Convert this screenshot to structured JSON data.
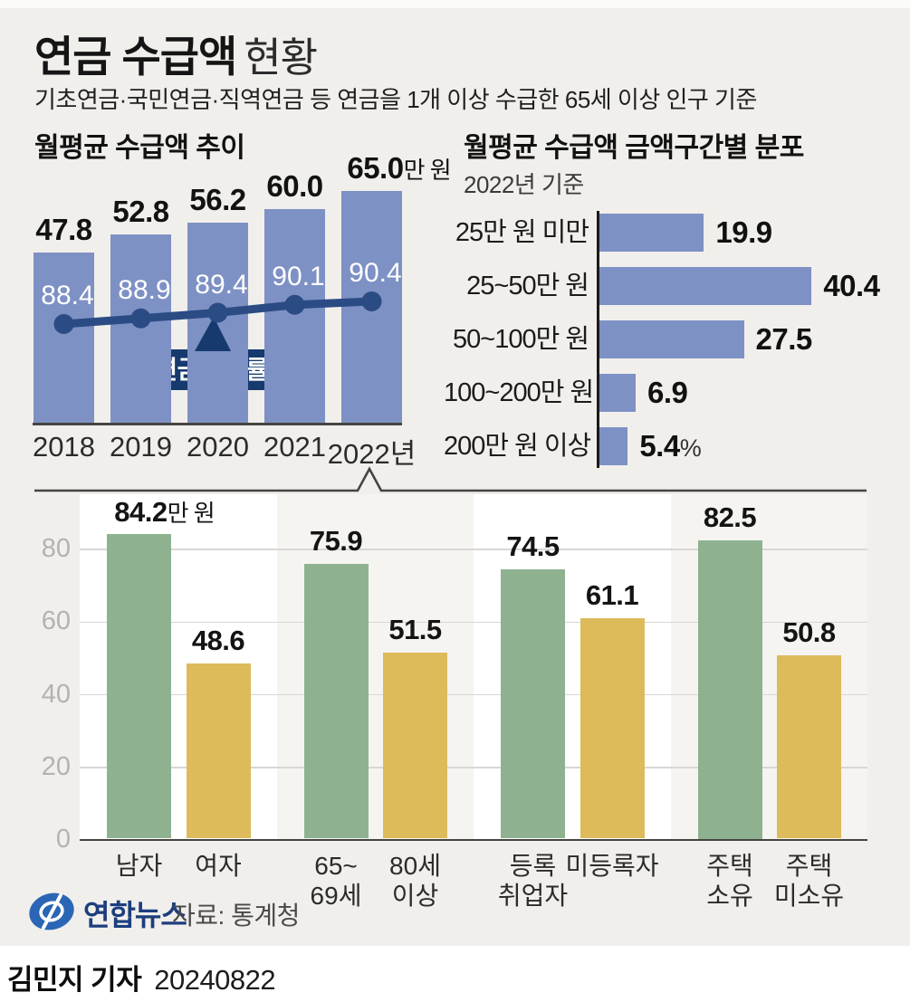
{
  "header": {
    "title_strong": "연금 수급액",
    "title_light": "현황",
    "subtitle": "기초연금·국민연금·직역연금 등 연금을 1개 이상 수급한 65세 이상 인구 기준"
  },
  "footer": {
    "logo_text": "연합뉴스",
    "source": "자료: 통계청",
    "byline": "김민지 기자",
    "date": "20240822"
  },
  "colors": {
    "bar_blue": "#7e91c5",
    "line_navy": "#2b4b84",
    "callout_navy": "#163a6e",
    "bar_green": "#8eb290",
    "bar_yellow": "#ddbb5b",
    "page_bg": "#f1efec",
    "panel_alt": "#f5f4f1",
    "grid": "#d9d7d4",
    "axis": "#454440"
  },
  "chart_data": [
    {
      "id": "trend",
      "type": "bar",
      "title": "월평균 수급액 추이",
      "categories": [
        "2018",
        "2019",
        "2020",
        "2021",
        "2022년"
      ],
      "series": [
        {
          "name": "월평균 수급액(만 원)",
          "type": "bar",
          "values": [
            47.8,
            52.8,
            56.2,
            60.0,
            65.0
          ]
        },
        {
          "name": "연금수급률(%)",
          "type": "line",
          "values": [
            88.4,
            88.9,
            89.4,
            90.1,
            90.4
          ]
        }
      ],
      "unit_suffix": "만 원",
      "line_label": "연금수급률(%)",
      "legend_position": "callout-on-line",
      "grid": false
    },
    {
      "id": "dist",
      "type": "bar",
      "orientation": "horizontal",
      "title": "월평균 수급액 금액구간별 분포",
      "subtitle": "2022년 기준",
      "categories": [
        "25만 원 미만",
        "25~50만 원",
        "50~100만 원",
        "100~200만 원",
        "200만 원 이상"
      ],
      "values": [
        19.9,
        40.4,
        27.5,
        6.9,
        5.4
      ],
      "unit_suffix_last": "%",
      "grid": false
    },
    {
      "id": "groups",
      "type": "bar",
      "ylim": [
        0,
        90
      ],
      "yticks": [
        0,
        20,
        40,
        60,
        80
      ],
      "unit_suffix_first": "만 원",
      "grid": true,
      "groups": [
        {
          "bars": [
            {
              "label_lines": [
                "남자"
              ],
              "value": 84.2
            },
            {
              "label_lines": [
                "여자"
              ],
              "value": 48.6
            }
          ]
        },
        {
          "bars": [
            {
              "label_lines": [
                "65~",
                "69세"
              ],
              "value": 75.9
            },
            {
              "label_lines": [
                "80세",
                "이상"
              ],
              "value": 51.5
            }
          ]
        },
        {
          "bars": [
            {
              "label_lines": [
                "등록",
                "취업자"
              ],
              "value": 74.5
            },
            {
              "label_lines": [
                "미등록자"
              ],
              "value": 61.1
            }
          ]
        },
        {
          "bars": [
            {
              "label_lines": [
                "주택",
                "소유"
              ],
              "value": 82.5
            },
            {
              "label_lines": [
                "주택",
                "미소유"
              ],
              "value": 50.8
            }
          ]
        }
      ]
    }
  ]
}
